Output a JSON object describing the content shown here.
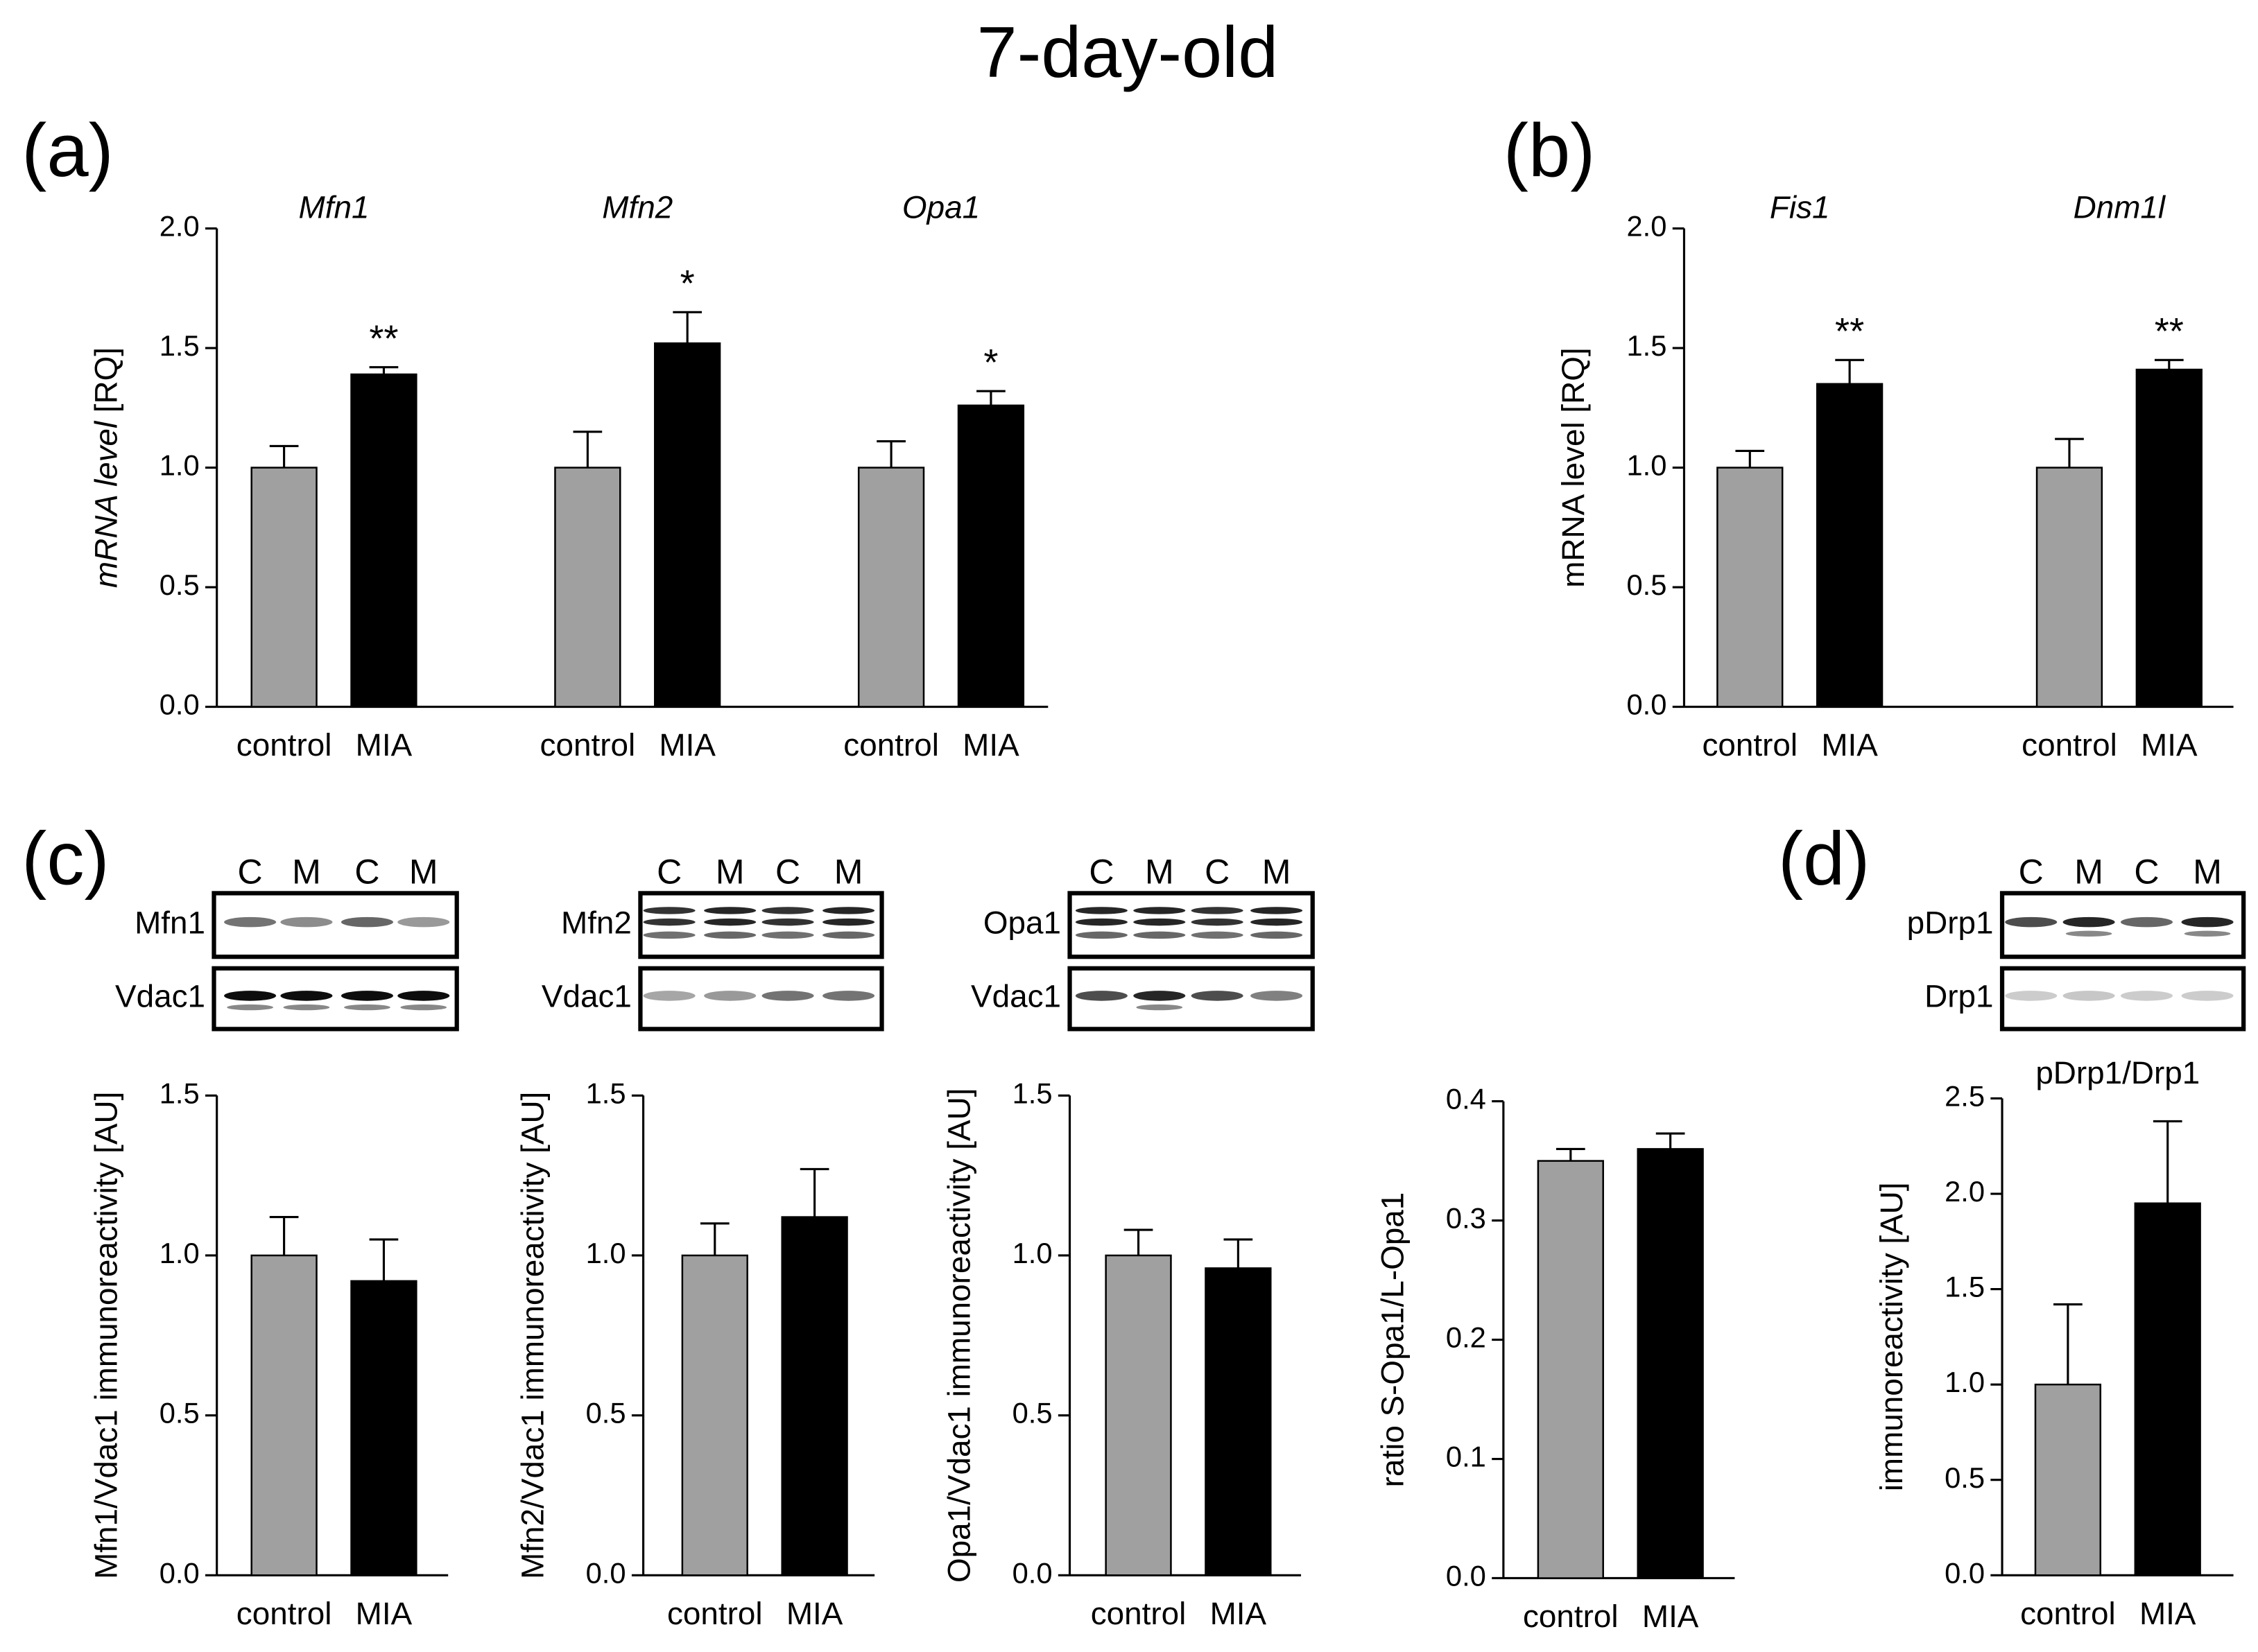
{
  "title": "7-day-old",
  "panels": [
    "(a)",
    "(b)",
    "(c)",
    "(d)"
  ],
  "blots": [
    {
      "lanes": [
        "C",
        "M",
        "C",
        "M"
      ],
      "rows": [
        "Mfn1",
        "Vdac1"
      ]
    },
    {
      "lanes": [
        "C",
        "M",
        "C",
        "M"
      ],
      "rows": [
        "Mfn2",
        "Vdac1"
      ]
    },
    {
      "lanes": [
        "C",
        "M",
        "C",
        "M"
      ],
      "rows": [
        "Opa1",
        "Vdac1"
      ]
    },
    {
      "lanes": [
        "C",
        "M",
        "C",
        "M"
      ],
      "rows": [
        "pDrp1",
        "Drp1"
      ]
    }
  ],
  "chart_data": [
    {
      "type": "bar",
      "ylabel": [
        "mRNA level",
        "[RQ]"
      ],
      "categories": [
        "Mfn1",
        "Mfn2",
        "Opa1"
      ],
      "series": [
        {
          "name": "control",
          "color": "#a0a0a0",
          "values": [
            1.0,
            1.0,
            1.0
          ],
          "errors": [
            0.09,
            0.15,
            0.11
          ]
        },
        {
          "name": "MIA",
          "color": "#000000",
          "values": [
            1.39,
            1.52,
            1.26
          ],
          "errors": [
            0.03,
            0.13,
            0.06
          ],
          "significance": [
            "**",
            "*",
            "*"
          ]
        }
      ],
      "ylim": [
        0,
        2
      ],
      "yticks": [
        {
          "value": 0,
          "label": "0.0"
        },
        0.5,
        {
          "value": 1,
          "label": "1.0"
        },
        1.5,
        {
          "value": 2,
          "label": "2.0"
        }
      ]
    },
    {
      "type": "bar",
      "ylabel": "mRNA level [RQ]",
      "categories": [
        "Fis1",
        "Dnm1l"
      ],
      "series": [
        {
          "name": "control",
          "color": "#a0a0a0",
          "values": [
            1.0,
            1.0
          ],
          "errors": [
            0.07,
            0.12
          ]
        },
        {
          "name": "MIA",
          "color": "#000000",
          "values": [
            1.35,
            1.41
          ],
          "errors": [
            0.1,
            0.04
          ],
          "significance": [
            "**",
            "**"
          ]
        }
      ],
      "ylim": [
        0,
        2
      ],
      "yticks": [
        {
          "value": 0,
          "label": "0.0"
        },
        0.5,
        {
          "value": 1,
          "label": "1.0"
        },
        1.5,
        {
          "value": 2,
          "label": "2.0"
        }
      ]
    },
    {
      "type": "bar",
      "ylabel": "Mfn1/Vdac1 immunoreactivity [AU]",
      "categories": [
        null
      ],
      "series": [
        {
          "name": "control",
          "color": "#a0a0a0",
          "values": [
            1.0
          ],
          "errors": [
            0.12
          ]
        },
        {
          "name": "MIA",
          "color": "#000000",
          "values": [
            0.92
          ],
          "errors": [
            0.13
          ]
        }
      ],
      "ylim": [
        0,
        1.5
      ],
      "yticks": [
        {
          "value": 0,
          "label": "0.0"
        },
        0.5,
        {
          "value": 1,
          "label": "1.0"
        },
        1.5
      ]
    },
    {
      "type": "bar",
      "ylabel": "Mfn2/Vdac1 immunoreactivity [AU]",
      "categories": [
        null
      ],
      "series": [
        {
          "name": "control",
          "color": "#a0a0a0",
          "values": [
            1.0
          ],
          "errors": [
            0.1
          ]
        },
        {
          "name": "MIA",
          "color": "#000000",
          "values": [
            1.12
          ],
          "errors": [
            0.15
          ]
        }
      ],
      "ylim": [
        0,
        1.5
      ],
      "yticks": [
        {
          "value": 0,
          "label": "0.0"
        },
        0.5,
        {
          "value": 1,
          "label": "1.0"
        },
        1.5
      ]
    },
    {
      "type": "bar",
      "ylabel": "Opa1/Vdac1 immunoreactivity [AU]",
      "categories": [
        null
      ],
      "series": [
        {
          "name": "control",
          "color": "#a0a0a0",
          "values": [
            1.0
          ],
          "errors": [
            0.08
          ]
        },
        {
          "name": "MIA",
          "color": "#000000",
          "values": [
            0.96
          ],
          "errors": [
            0.09
          ]
        }
      ],
      "ylim": [
        0,
        1.5
      ],
      "yticks": [
        {
          "value": 0,
          "label": "0.0"
        },
        0.5,
        {
          "value": 1,
          "label": "1.0"
        },
        1.5
      ]
    },
    {
      "type": "bar",
      "ylabel": "ratio S-Opa1/L-Opa1",
      "categories": [
        null
      ],
      "series": [
        {
          "name": "control",
          "color": "#a0a0a0",
          "values": [
            0.35
          ],
          "errors": [
            0.01
          ]
        },
        {
          "name": "MIA",
          "color": "#000000",
          "values": [
            0.36
          ],
          "errors": [
            0.013
          ]
        }
      ],
      "ylim": [
        0,
        0.4
      ],
      "yticks": [
        {
          "value": 0,
          "label": "0.0"
        },
        0.1,
        0.2,
        0.3,
        0.4
      ]
    },
    {
      "type": "bar",
      "title": "pDrp1/Drp1",
      "ylabel": "immunoreactivity [AU]",
      "categories": [
        null
      ],
      "series": [
        {
          "name": "control",
          "color": "#a0a0a0",
          "values": [
            1.0
          ],
          "errors": [
            0.42
          ]
        },
        {
          "name": "MIA",
          "color": "#000000",
          "values": [
            1.95
          ],
          "errors": [
            0.43
          ]
        }
      ],
      "ylim": [
        0,
        2.5
      ],
      "yticks": [
        {
          "value": 0,
          "label": "0.0"
        },
        0.5,
        {
          "value": 1,
          "label": "1.0"
        },
        1.5,
        {
          "value": 2,
          "label": "2.0"
        },
        2.5
      ]
    }
  ]
}
